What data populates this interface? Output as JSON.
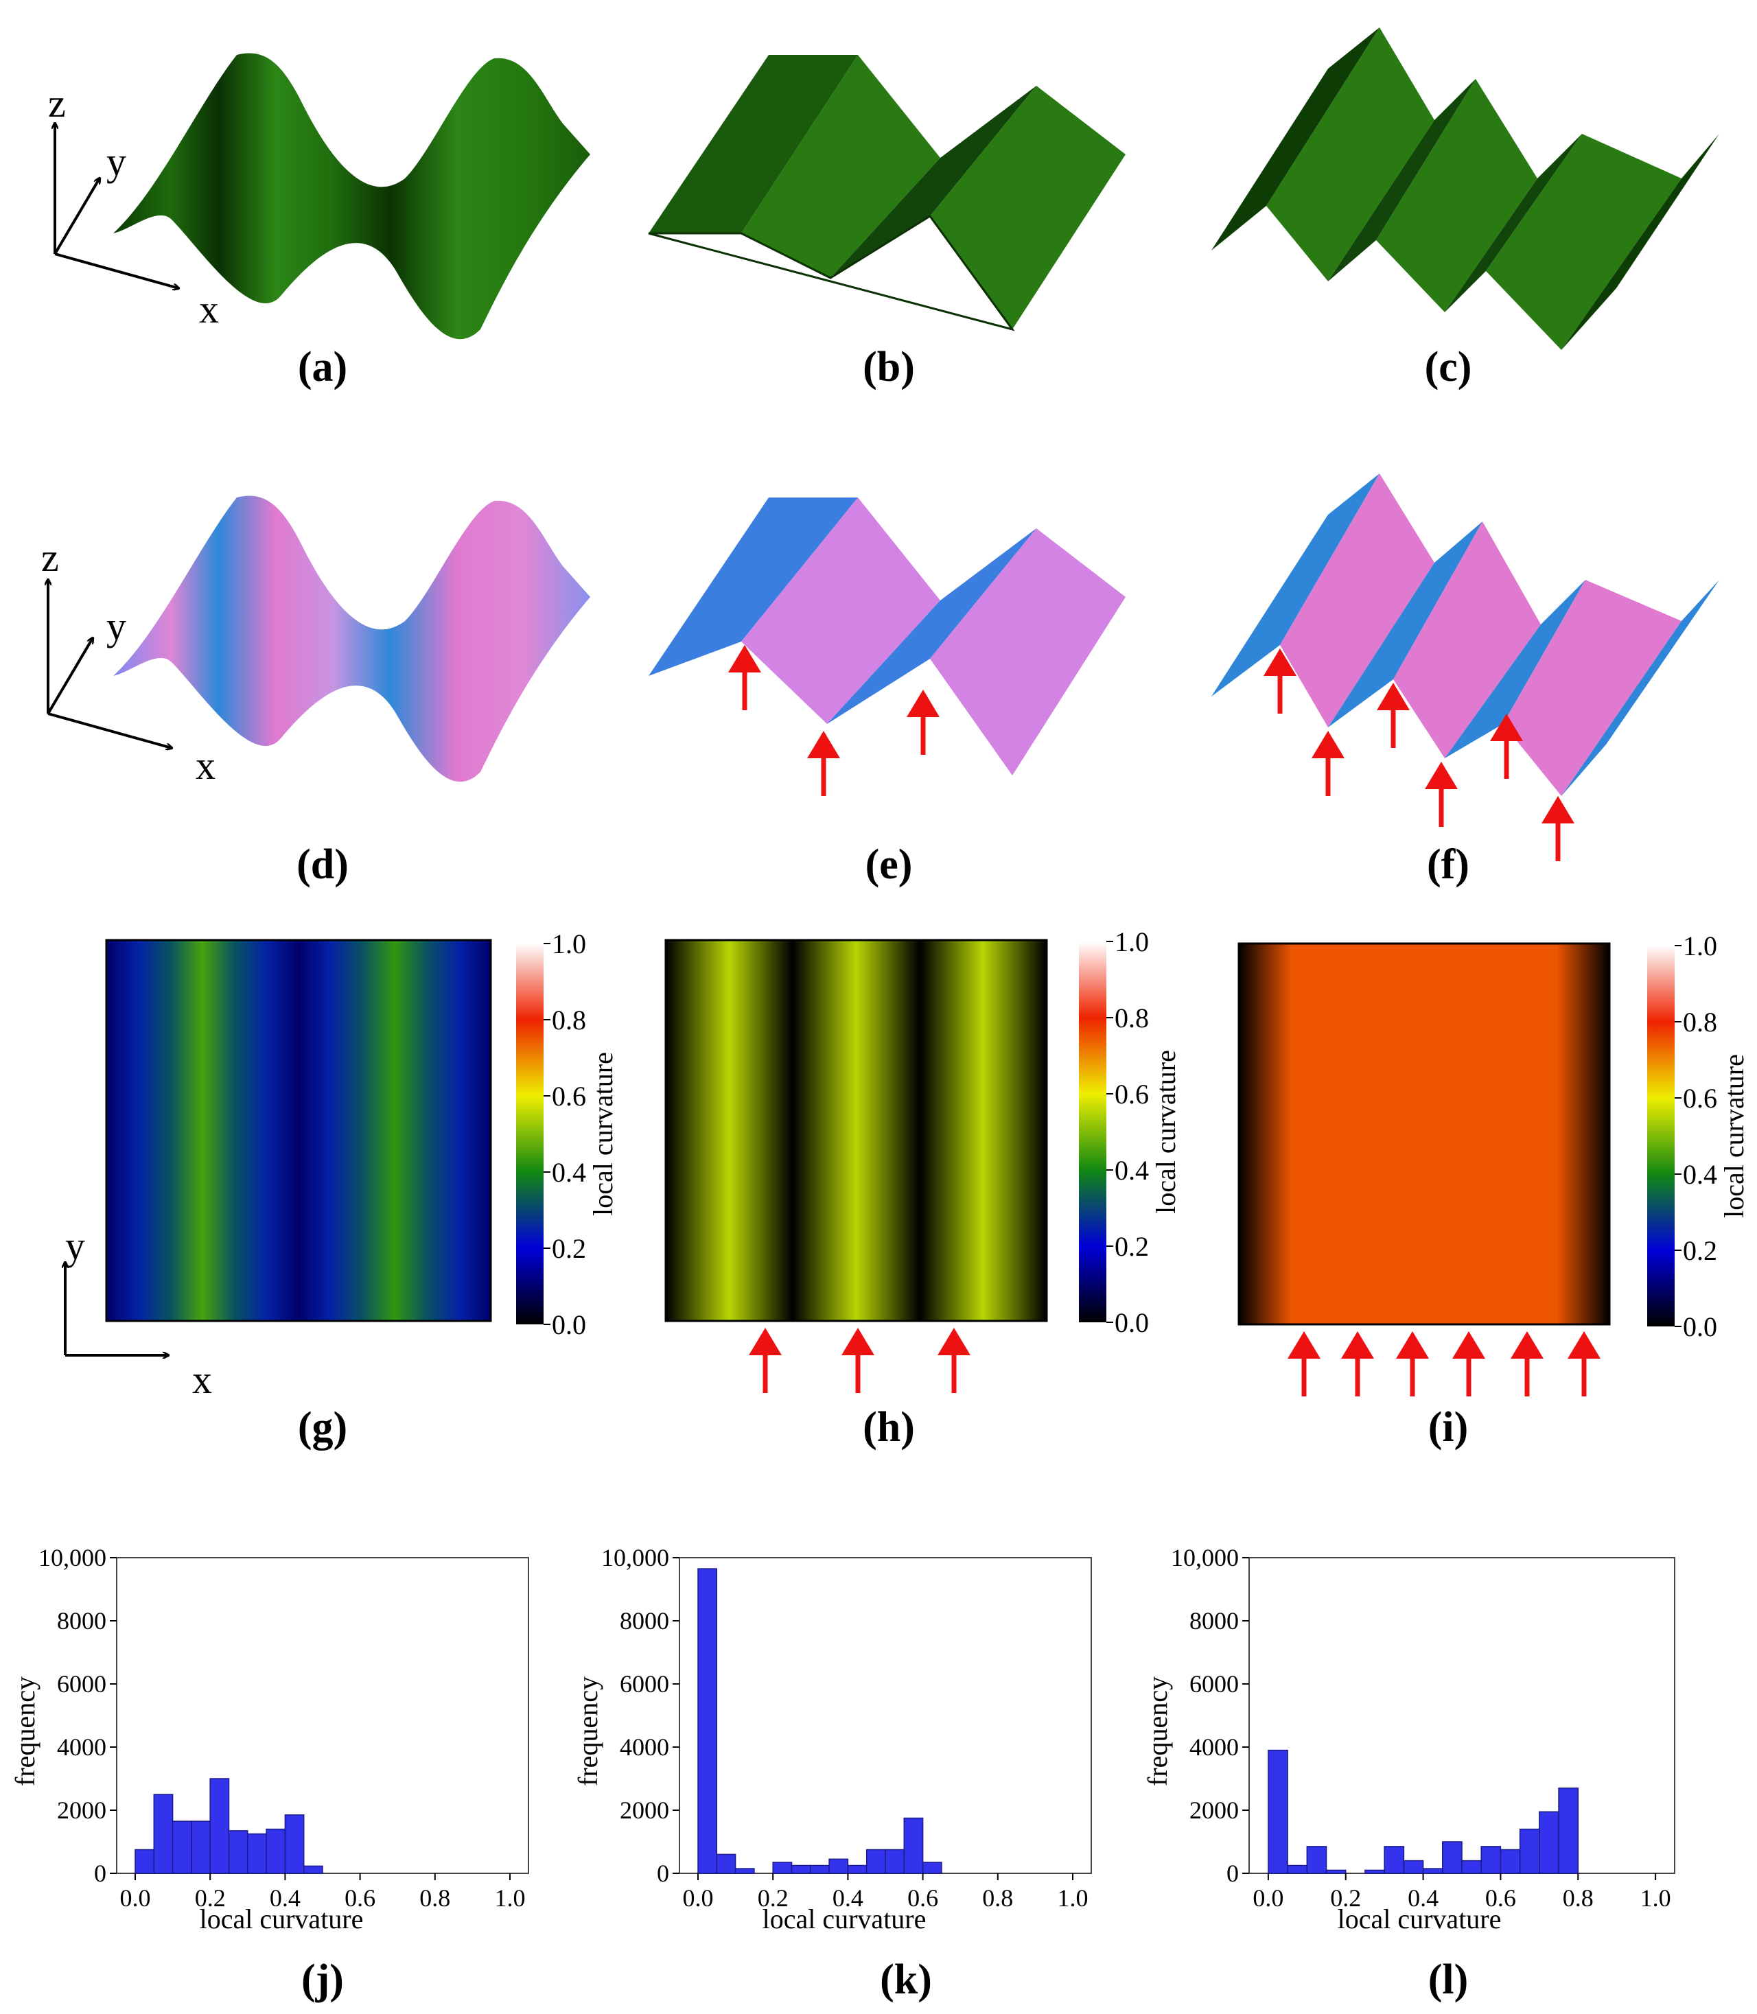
{
  "panel_labels": [
    "(a)",
    "(b)",
    "(c)",
    "(d)",
    "(e)",
    "(f)",
    "(g)",
    "(h)",
    "(i)",
    "(j)",
    "(k)",
    "(l)"
  ],
  "axes": {
    "x": "x",
    "y": "y",
    "z": "z"
  },
  "colors": {
    "green_light": "#2e8a17",
    "green_mid": "#1e6a0c",
    "green_dark": "#0c3a04",
    "pink": "#e07ad0",
    "pink_light": "#d890e4",
    "blue": "#3a7ee0",
    "blue_dark": "#1f6fd8",
    "arrow": "#ee1111",
    "bar": "#3333ee",
    "bar_edge": "#1a1a88"
  },
  "colorbar": {
    "label": "local curvature",
    "ticks": [
      "0.0",
      "0.2",
      "0.4",
      "0.6",
      "0.8",
      "1.0"
    ]
  },
  "heatmaps": [
    {
      "id": "g",
      "stripes": [
        0.1,
        0.25,
        0.32,
        0.45,
        0.32,
        0.25,
        0.1,
        0.25,
        0.32,
        0.43,
        0.32,
        0.25,
        0.1
      ]
    },
    {
      "id": "h",
      "stripes": [
        0.0,
        0.55,
        0.0,
        0.55,
        0.0,
        0.55,
        0.0
      ]
    },
    {
      "id": "i",
      "stripes": [
        0.0,
        0.75,
        0.75,
        0.75,
        0.75,
        0.75,
        0.75,
        0.0
      ]
    }
  ],
  "chart_data": [
    {
      "type": "bar",
      "panel": "(j)",
      "xlabel": "local curvature",
      "ylabel": "frequency",
      "xlim": [
        0.0,
        1.0
      ],
      "ylim": [
        0,
        10000
      ],
      "xticks": [
        "0.0",
        "0.2",
        "0.4",
        "0.6",
        "0.8",
        "1.0"
      ],
      "yticks": [
        "0",
        "2000",
        "4000",
        "6000",
        "8000",
        "10,000"
      ],
      "bin_width": 0.05,
      "bins": [
        0.0,
        0.05,
        0.1,
        0.15,
        0.2,
        0.25,
        0.3,
        0.35,
        0.4,
        0.45
      ],
      "values": [
        750,
        2500,
        1650,
        1650,
        3000,
        1350,
        1250,
        1400,
        1850,
        230
      ]
    },
    {
      "type": "bar",
      "panel": "(k)",
      "xlabel": "local curvature",
      "ylabel": "frequency",
      "xlim": [
        0.0,
        1.0
      ],
      "ylim": [
        0,
        10000
      ],
      "xticks": [
        "0.0",
        "0.2",
        "0.4",
        "0.6",
        "0.8",
        "1.0"
      ],
      "yticks": [
        "0",
        "2000",
        "4000",
        "6000",
        "8000",
        "10,000"
      ],
      "bin_width": 0.05,
      "bins": [
        0.0,
        0.05,
        0.1,
        0.15,
        0.2,
        0.25,
        0.3,
        0.35,
        0.4,
        0.45,
        0.5,
        0.55,
        0.6
      ],
      "values": [
        9650,
        600,
        150,
        0,
        350,
        250,
        250,
        450,
        250,
        750,
        750,
        1750,
        350
      ]
    },
    {
      "type": "bar",
      "panel": "(l)",
      "xlabel": "local curvature",
      "ylabel": "frequency",
      "xlim": [
        0.0,
        1.0
      ],
      "ylim": [
        0,
        10000
      ],
      "xticks": [
        "0.0",
        "0.2",
        "0.4",
        "0.6",
        "0.8",
        "1.0"
      ],
      "yticks": [
        "0",
        "2000",
        "4000",
        "6000",
        "8000",
        "10,000"
      ],
      "bin_width": 0.05,
      "bins": [
        0.0,
        0.05,
        0.1,
        0.15,
        0.2,
        0.25,
        0.3,
        0.35,
        0.4,
        0.45,
        0.5,
        0.55,
        0.6,
        0.65,
        0.7,
        0.75
      ],
      "values": [
        3900,
        250,
        850,
        100,
        0,
        100,
        850,
        400,
        150,
        1000,
        400,
        850,
        750,
        1400,
        1950,
        2700
      ]
    }
  ]
}
